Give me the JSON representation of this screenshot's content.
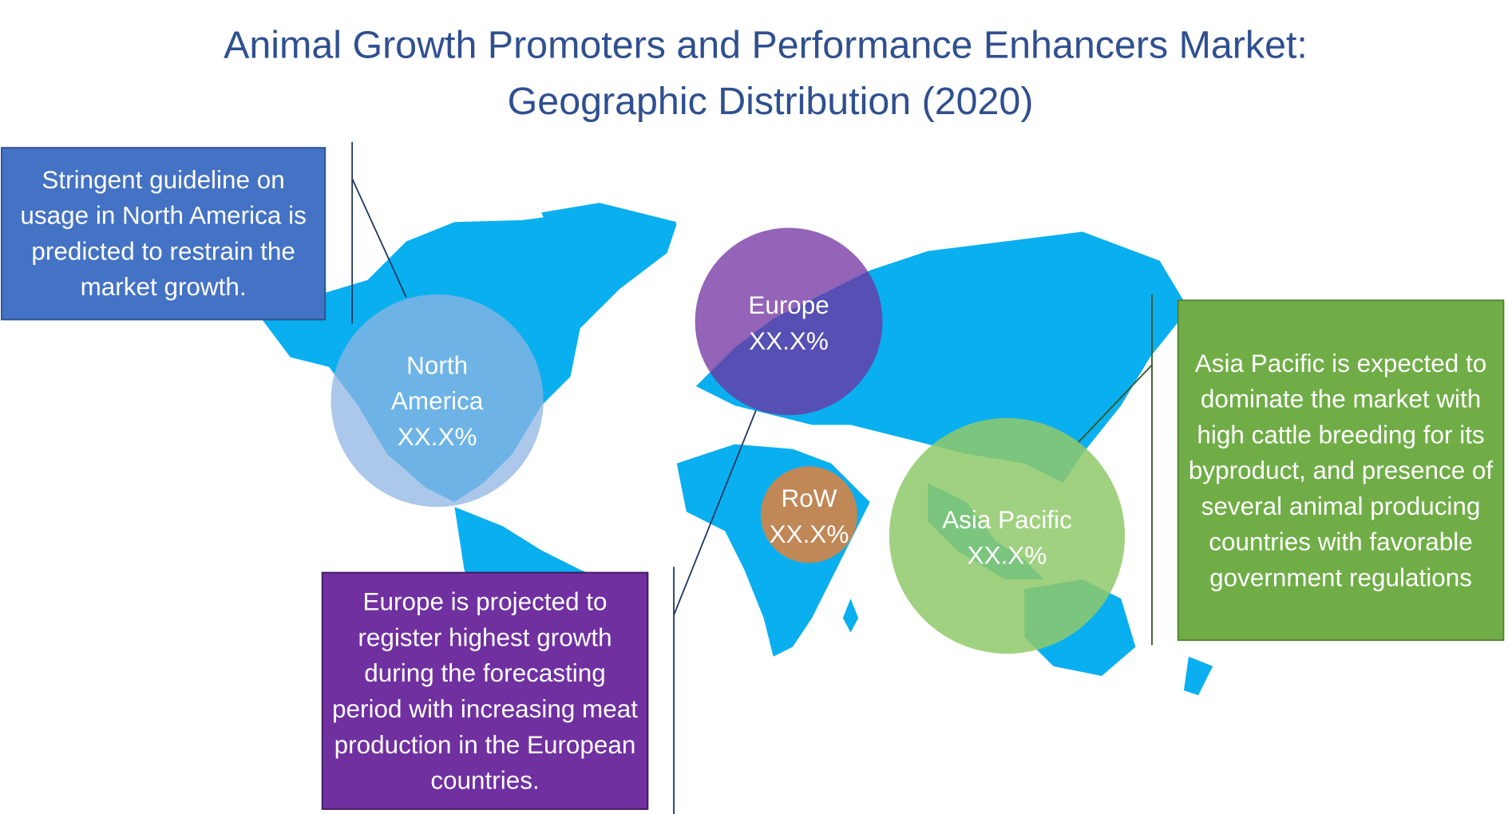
{
  "title": {
    "lines": [
      "Animal Growth Promoters and Performance Enhancers Market:",
      "Geographic Distribution (2020)"
    ]
  },
  "regions": [
    {
      "name": "North America",
      "value_label": "XX.X%"
    },
    {
      "name": "Europe",
      "value_label": "XX.X%"
    },
    {
      "name": "RoW",
      "value_label": "XX.X%"
    },
    {
      "name": "Asia Pacific",
      "value_label": "XX.X%"
    }
  ],
  "callouts": [
    {
      "text": "Stringent guideline on usage in North America is predicted to restrain the market growth."
    },
    {
      "text": "Europe is projected to register highest growth during the forecasting period with increasing meat production in the European countries."
    },
    {
      "text": "Asia Pacific is expected to dominate the market with high cattle breeding for its byproduct, and presence of several animal producing countries with favorable government regulations"
    }
  ]
}
